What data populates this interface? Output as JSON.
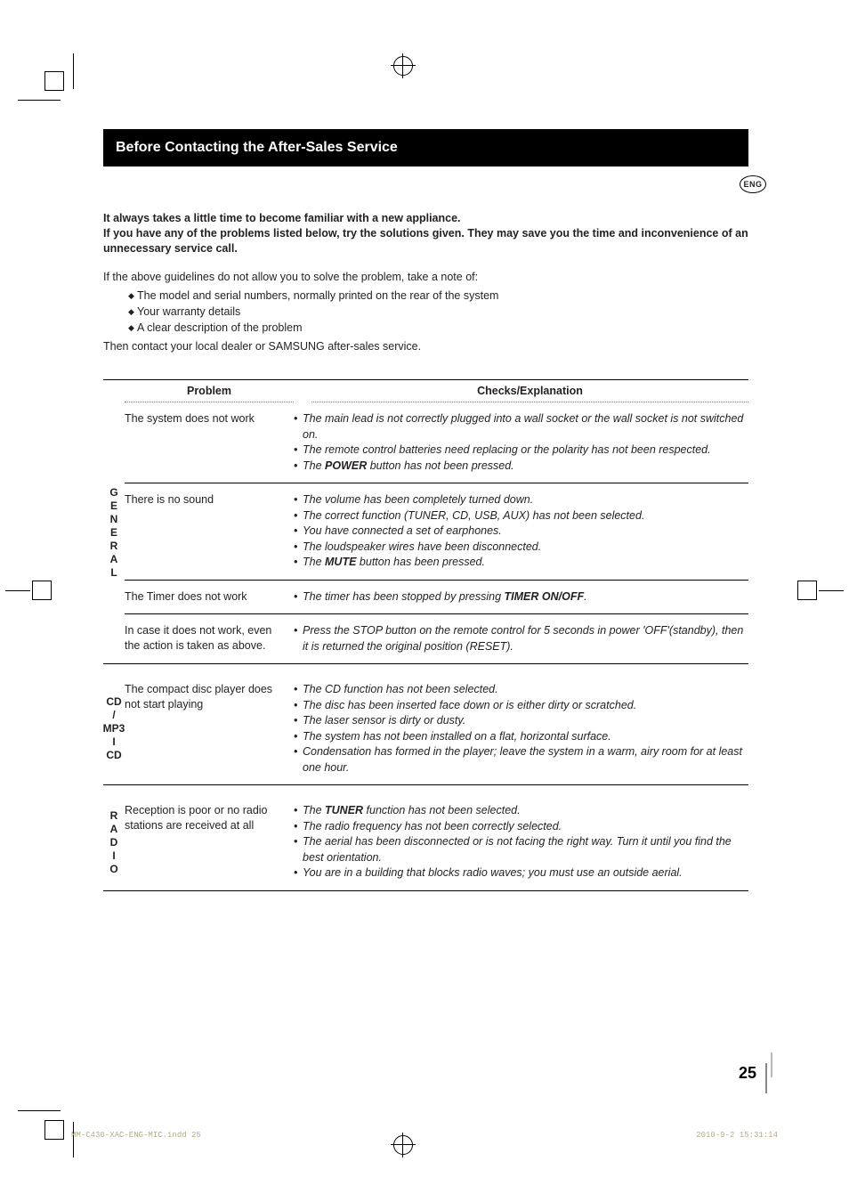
{
  "badge": "ENG",
  "title": "Before Contacting the After-Sales Service",
  "intro_bold_1": "It always takes a little time to become familiar with a new appliance.",
  "intro_bold_2": "If you have any of the problems listed below, try the solutions given. They may save you the time and inconvenience of an unnecessary service call.",
  "intro_plain_lead": "If the above guidelines do not allow you to solve the problem, take a note of:",
  "intro_bullets": [
    "The model and serial numbers, normally printed on the rear of the system",
    "Your warranty details",
    "A clear description of the problem"
  ],
  "intro_plain_tail": "Then contact your local dealer or SAMSUNG after-sales service.",
  "head_problem": "Problem",
  "head_checks": "Checks/Explanation",
  "categories": [
    {
      "label": "G\nE\nN\nE\nR\nA\nL",
      "rows": [
        {
          "problem": "The system does not work",
          "checks": [
            {
              "pre": "The main lead is not correctly plugged into a wall socket or the wall socket is not switched on."
            },
            {
              "pre": "The remote control batteries need replacing or the polarity has not been respected."
            },
            {
              "pre": "The ",
              "bold": "POWER",
              "post": " button has not been pressed."
            }
          ]
        },
        {
          "problem": "There is no sound",
          "checks": [
            {
              "pre": "The volume has been completely turned down."
            },
            {
              "pre": "The correct function (TUNER, CD, USB, AUX) has not been selected."
            },
            {
              "pre": "You have connected a set of earphones."
            },
            {
              "pre": "The loudspeaker wires have been disconnected."
            },
            {
              "pre": "The ",
              "bold": "MUTE",
              "post": " button has been pressed."
            }
          ]
        },
        {
          "problem": "The Timer does not work",
          "checks": [
            {
              "pre": "The timer has been stopped by pressing ",
              "bold": "TIMER ON/OFF",
              "post": "."
            }
          ]
        },
        {
          "problem": "In case it does not work, even the action is taken as above.",
          "checks": [
            {
              "pre": "Press the STOP  button on the remote control for 5 seconds in power 'OFF'(standby), then it is returned the original position (RESET)."
            }
          ]
        }
      ]
    },
    {
      "label": "CD\n/\nMP3\nI\nCD",
      "rows": [
        {
          "problem": "The compact disc player does not start playing",
          "checks": [
            {
              "pre": "The CD function has not been selected."
            },
            {
              "pre": "The disc has been inserted face down or is either dirty or scratched."
            },
            {
              "pre": "The laser sensor is dirty or dusty."
            },
            {
              "pre": "The system has not been installed on a flat, horizontal surface."
            },
            {
              "pre": "Condensation has formed in the player; leave the system in a warm, airy room for at least one hour."
            }
          ]
        }
      ]
    },
    {
      "label": "R\nA\nD\nI\nO",
      "rows": [
        {
          "problem": "Reception is poor or no radio stations are received at all",
          "checks": [
            {
              "pre": "The ",
              "bold": "TUNER",
              "post": " function has not been selected."
            },
            {
              "pre": "The radio frequency has not been correctly selected."
            },
            {
              "pre": "The aerial has been disconnected or is not facing the right way. Turn it until you find the best orientation."
            },
            {
              "pre": "You are in a building that blocks radio waves; you must use an outside aerial."
            }
          ]
        }
      ]
    }
  ],
  "page_number": "25",
  "footer_left": "MM-C430-XAC-ENG-MIC.indd   25",
  "footer_right": "2010-9-2   15:31:14"
}
